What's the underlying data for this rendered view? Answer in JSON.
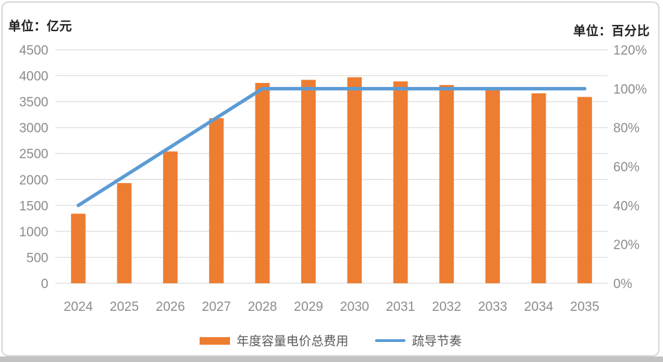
{
  "chart_data": {
    "type": "combo",
    "categories": [
      "2024",
      "2025",
      "2026",
      "2027",
      "2028",
      "2029",
      "2030",
      "2031",
      "2032",
      "2033",
      "2034",
      "2035"
    ],
    "series": [
      {
        "name": "年度容量电价总费用",
        "type": "bar",
        "axis": "left",
        "color": "#ED7D31",
        "values": [
          1340,
          1930,
          2540,
          3180,
          3860,
          3920,
          3970,
          3890,
          3820,
          3740,
          3660,
          3590
        ]
      },
      {
        "name": "疏导节奏",
        "type": "line",
        "axis": "right",
        "color": "#5B9BD5",
        "values": [
          40,
          55,
          70,
          85,
          100,
          100,
          100,
          100,
          100,
          100,
          100,
          100
        ]
      }
    ],
    "left_axis": {
      "label": "单位：亿元",
      "min": 0,
      "max": 4500,
      "step": 500,
      "tick_suffix": ""
    },
    "right_axis": {
      "label": "单位：百分比",
      "min": 0,
      "max": 120,
      "step": 20,
      "tick_suffix": "%"
    },
    "grid": true,
    "legend_position": "bottom",
    "styles": {
      "gridline_color": "#dcdcdc",
      "tick_label_color": "#8c8c8c",
      "legend_text_color": "#595959"
    }
  }
}
